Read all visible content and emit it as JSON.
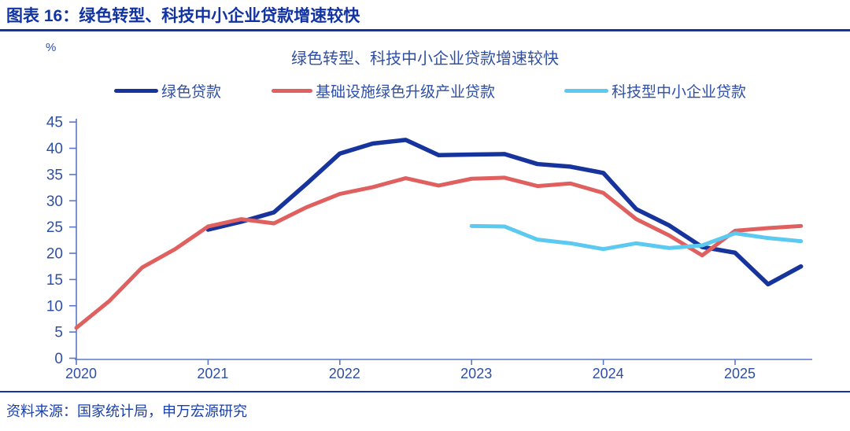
{
  "header": {
    "title": "图表 16：绿色转型、科技中小企业贷款增速较快"
  },
  "chart": {
    "title": "绿色转型、科技中小企业贷款增速较快",
    "unit_label": "%",
    "legend": [
      {
        "label": "绿色贷款",
        "color": "#16349C"
      },
      {
        "label": "基础设施绿色升级产业贷款",
        "color": "#E05F5F"
      },
      {
        "label": "科技型中小企业贷款",
        "color": "#5CC9F0"
      }
    ]
  },
  "chart_data": {
    "type": "line",
    "title": "绿色转型、科技中小企业贷款增速较快",
    "xlabel": "",
    "ylabel": "%",
    "ylim": [
      0,
      45
    ],
    "ytick_step": 5,
    "yticks": [
      0,
      5,
      10,
      15,
      20,
      25,
      30,
      35,
      40,
      45
    ],
    "xticks": [
      "2020",
      "2021",
      "2022",
      "2023",
      "2024",
      "2025"
    ],
    "x_unit": "quarter",
    "x_start": "2020Q1",
    "x_end": "2025Q3",
    "grid": false,
    "legend_position": "top",
    "series": [
      {
        "id": "green-loans",
        "name": "绿色贷款",
        "color": "#16349C",
        "start": "2021Q1",
        "start_index": 4,
        "values": [
          24.5,
          26.0,
          27.8,
          33.3,
          39.0,
          40.9,
          41.6,
          38.7,
          38.8,
          38.9,
          37.0,
          36.5,
          35.3,
          28.4,
          25.3,
          21.2,
          20.1,
          14.1,
          17.5
        ]
      },
      {
        "id": "infra-green-upgrade-loans",
        "name": "基础设施绿色升级产业贷款",
        "color": "#E05F5F",
        "start": "2020Q1",
        "start_index": 0,
        "values": [
          5.8,
          10.9,
          17.3,
          20.8,
          25.1,
          26.5,
          25.7,
          28.8,
          31.3,
          32.6,
          34.3,
          32.9,
          34.2,
          34.4,
          32.8,
          33.3,
          31.5,
          26.5,
          23.4,
          19.6,
          24.3,
          24.8,
          25.2
        ]
      },
      {
        "id": "tech-sme-loans",
        "name": "科技型中小企业贷款",
        "color": "#5CC9F0",
        "start": "2023Q1",
        "start_index": 12,
        "values": [
          25.2,
          25.1,
          22.6,
          21.9,
          20.8,
          21.9,
          21.0,
          21.5,
          23.8,
          22.9,
          22.3
        ]
      }
    ]
  },
  "footer": {
    "source": "资料来源：国家统计局，申万宏源研究"
  }
}
